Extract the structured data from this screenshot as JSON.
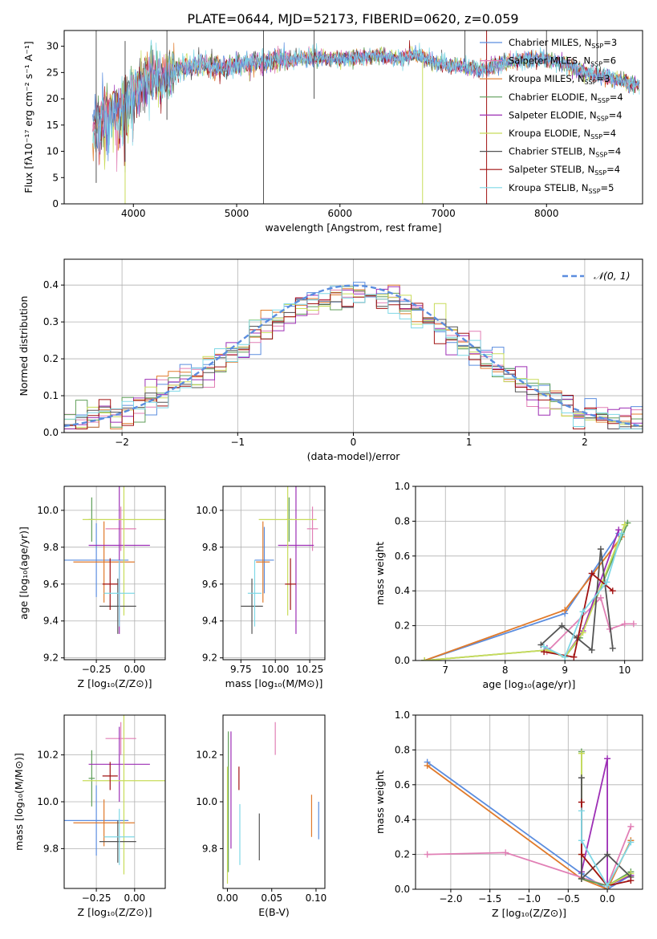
{
  "figure": {
    "title": "PLATE=0644, MJD=52173, FIBERID=0620, z=0.059"
  },
  "colors": {
    "Chabrier MILES": "#5b8ddf",
    "Salpeter MILES": "#e17fb5",
    "Kroupa MILES": "#e07a2b",
    "Chabrier ELODIE": "#5f9e58",
    "Salpeter ELODIE": "#9d2fb5",
    "Kroupa ELODIE": "#c8dc5a",
    "Chabrier STELIB": "#545454",
    "Salpeter STELIB": "#a11212",
    "Kroupa STELIB": "#7fd8e6"
  },
  "chart_data": [
    {
      "id": "spectrum",
      "type": "line",
      "title": "PLATE=0644, MJD=52173, FIBERID=0620, z=0.059",
      "xlabel": "wavelength [Angstrom, rest frame]",
      "ylabel": "Flux [fλ10⁻¹⁷ erg cm⁻² s⁻¹ A⁻¹]",
      "xlim": [
        3330,
        8930
      ],
      "ylim": [
        0,
        33
      ],
      "xticks": [
        4000,
        5000,
        6000,
        7000,
        8000
      ],
      "yticks": [
        0,
        5,
        10,
        15,
        20,
        25,
        30
      ],
      "grid": false,
      "legend_position": "right",
      "continuum": {
        "x": [
          3600,
          3650,
          3700,
          3800,
          3900,
          3950,
          4000,
          4100,
          4200,
          4300,
          4400,
          4500,
          4700,
          4860,
          5000,
          5200,
          5400,
          5600,
          5800,
          6000,
          6200,
          6400,
          6563,
          6700,
          6900,
          7000,
          7200,
          7400,
          7600,
          7800,
          8000,
          8200,
          8400,
          8600,
          8800,
          8900
        ],
        "y": [
          14,
          16,
          17,
          19,
          18.5,
          19.5,
          21,
          23.5,
          24.5,
          23.5,
          25.5,
          26,
          26.5,
          25.5,
          26.5,
          27,
          27.5,
          27.5,
          28,
          27.5,
          28,
          28.2,
          27.5,
          28.5,
          27,
          26.5,
          26,
          25.5,
          27,
          27.5,
          27.5,
          26.5,
          25,
          24,
          23,
          22.5
        ]
      },
      "legend": [
        {
          "label": "Chabrier MILES, N",
          "sub": "SSP",
          "suffix": "=3",
          "color": "#5b8ddf"
        },
        {
          "label": "Salpeter MILES, N",
          "sub": "SSP",
          "suffix": "=6",
          "color": "#e17fb5"
        },
        {
          "label": "Kroupa MILES, N",
          "sub": "SSP",
          "suffix": "=3",
          "color": "#e07a2b"
        },
        {
          "label": "Chabrier ELODIE, N",
          "sub": "SSP",
          "suffix": "=4",
          "color": "#5f9e58"
        },
        {
          "label": "Salpeter ELODIE, N",
          "sub": "SSP",
          "suffix": "=4",
          "color": "#9d2fb5"
        },
        {
          "label": "Kroupa ELODIE, N",
          "sub": "SSP",
          "suffix": "=4",
          "color": "#c8dc5a"
        },
        {
          "label": "Chabrier STELIB, N",
          "sub": "SSP",
          "suffix": "=4",
          "color": "#545454"
        },
        {
          "label": "Salpeter STELIB, N",
          "sub": "SSP",
          "suffix": "=4",
          "color": "#a11212"
        },
        {
          "label": "Kroupa STELIB, N",
          "sub": "SSP",
          "suffix": "=5",
          "color": "#7fd8e6"
        }
      ]
    },
    {
      "id": "residuals",
      "type": "line",
      "xlabel": "(data-model)/error",
      "ylabel": "Normed distribution",
      "xlim": [
        -2.5,
        2.5
      ],
      "ylim": [
        0,
        0.47
      ],
      "xticks": [
        -2,
        -1,
        0,
        1,
        2
      ],
      "yticks": [
        0.0,
        0.1,
        0.2,
        0.3,
        0.4
      ],
      "grid": true,
      "bin_width": 0.1,
      "reference": {
        "label": "𝒩(0, 1)",
        "color": "#5b8ddf",
        "style": "dashed"
      },
      "legend_position": "top-right"
    },
    {
      "id": "age-Z",
      "type": "scatter",
      "xlabel": "Z [log₁₀(Z/Z⊙)]",
      "ylabel": "age  [log₁₀(age/yr)]",
      "xlim": [
        -0.46,
        0.2
      ],
      "ylim": [
        9.19,
        10.13
      ],
      "xticks": [
        -0.25,
        0.0
      ],
      "yticks": [
        9.2,
        9.4,
        9.6,
        9.8,
        10.0
      ],
      "grid": true,
      "points": [
        {
          "name": "Chabrier MILES",
          "x": -0.25,
          "y": 9.73,
          "xerr": 0.21,
          "yerr": 0.2
        },
        {
          "name": "Salpeter MILES",
          "x": -0.09,
          "y": 9.9,
          "xerr": 0.1,
          "yerr": 0.12
        },
        {
          "name": "Kroupa MILES",
          "x": -0.2,
          "y": 9.72,
          "xerr": 0.2,
          "yerr": 0.22
        },
        {
          "name": "Chabrier ELODIE",
          "x": -0.28,
          "y": 9.95,
          "xerr": 0.02,
          "yerr": 0.12
        },
        {
          "name": "Salpeter ELODIE",
          "x": -0.1,
          "y": 9.81,
          "xerr": 0.2,
          "yerr": 0.48
        },
        {
          "name": "Kroupa ELODIE",
          "x": -0.07,
          "y": 9.95,
          "xerr": 0.27,
          "yerr": 0.52
        },
        {
          "name": "Chabrier STELIB",
          "x": -0.11,
          "y": 9.48,
          "xerr": 0.12,
          "yerr": 0.15
        },
        {
          "name": "Salpeter STELIB",
          "x": -0.16,
          "y": 9.6,
          "xerr": 0.05,
          "yerr": 0.14
        },
        {
          "name": "Kroupa STELIB",
          "x": -0.1,
          "y": 9.55,
          "xerr": 0.1,
          "yerr": 0.18
        }
      ]
    },
    {
      "id": "age-mass",
      "type": "scatter",
      "xlabel": "mass [log₁₀(M/M⊙)]",
      "ylabel": "",
      "xlim": [
        9.62,
        10.36
      ],
      "ylim": [
        9.19,
        10.13
      ],
      "xticks": [
        9.75,
        10.0,
        10.25
      ],
      "yticks": [
        9.2,
        9.4,
        9.6,
        9.8,
        10.0
      ],
      "grid": true,
      "points": [
        {
          "name": "Chabrier MILES",
          "x": 9.92,
          "y": 9.73,
          "xerr": 0.07,
          "yerr": 0.18
        },
        {
          "name": "Salpeter MILES",
          "x": 10.27,
          "y": 9.9,
          "xerr": 0.04,
          "yerr": 0.12
        },
        {
          "name": "Kroupa MILES",
          "x": 9.91,
          "y": 9.72,
          "xerr": 0.05,
          "yerr": 0.22
        },
        {
          "name": "Chabrier ELODIE",
          "x": 10.1,
          "y": 9.95,
          "xerr": 0.02,
          "yerr": 0.12
        },
        {
          "name": "Salpeter ELODIE",
          "x": 10.15,
          "y": 9.81,
          "xerr": 0.13,
          "yerr": 0.48
        },
        {
          "name": "Kroupa ELODIE",
          "x": 10.09,
          "y": 9.95,
          "xerr": 0.21,
          "yerr": 0.52
        },
        {
          "name": "Chabrier STELIB",
          "x": 9.83,
          "y": 9.48,
          "xerr": 0.08,
          "yerr": 0.15
        },
        {
          "name": "Salpeter STELIB",
          "x": 10.11,
          "y": 9.6,
          "xerr": 0.04,
          "yerr": 0.14
        },
        {
          "name": "Kroupa STELIB",
          "x": 9.85,
          "y": 9.55,
          "xerr": 0.05,
          "yerr": 0.18
        }
      ]
    },
    {
      "id": "weight-age",
      "type": "line",
      "xlabel": "age  [log₁₀(age/yr)]",
      "ylabel": "mass weight",
      "xlim": [
        6.5,
        10.3
      ],
      "ylim": [
        0,
        1.0
      ],
      "xticks": [
        7,
        8,
        9,
        10
      ],
      "yticks": [
        0.0,
        0.2,
        0.4,
        0.6,
        0.8,
        1.0
      ],
      "grid": true,
      "series": [
        {
          "name": "Chabrier MILES",
          "x": [
            6.65,
            9.0,
            9.9
          ],
          "y": [
            0.0,
            0.27,
            0.73
          ]
        },
        {
          "name": "Kroupa MILES",
          "x": [
            6.65,
            9.0,
            9.95
          ],
          "y": [
            0.0,
            0.29,
            0.71
          ]
        },
        {
          "name": "Salpeter MILES",
          "x": [
            8.7,
            9.6,
            9.75,
            10.0,
            10.15
          ],
          "y": [
            0.05,
            0.36,
            0.18,
            0.21,
            0.21
          ]
        },
        {
          "name": "Chabrier ELODIE",
          "x": [
            6.65,
            8.7,
            9.0,
            9.25,
            10.05
          ],
          "y": [
            0.0,
            0.06,
            0.02,
            0.13,
            0.79
          ]
        },
        {
          "name": "Salpeter ELODIE",
          "x": [
            8.7,
            9.0,
            9.3,
            9.9
          ],
          "y": [
            0.07,
            0.02,
            0.17,
            0.75
          ]
        },
        {
          "name": "Kroupa ELODIE",
          "x": [
            6.65,
            8.7,
            9.0,
            9.3,
            10.0
          ],
          "y": [
            0.0,
            0.06,
            0.02,
            0.16,
            0.78
          ]
        },
        {
          "name": "Chabrier STELIB",
          "x": [
            8.6,
            8.95,
            9.2,
            9.45,
            9.6,
            9.8
          ],
          "y": [
            0.09,
            0.2,
            0.13,
            0.06,
            0.64,
            0.07
          ]
        },
        {
          "name": "Salpeter STELIB",
          "x": [
            8.65,
            9.15,
            9.45,
            9.8
          ],
          "y": [
            0.05,
            0.02,
            0.5,
            0.4
          ]
        },
        {
          "name": "Kroupa STELIB",
          "x": [
            8.65,
            9.0,
            9.3,
            9.7,
            9.95
          ],
          "y": [
            0.08,
            0.02,
            0.28,
            0.45,
            0.73
          ]
        }
      ]
    },
    {
      "id": "mass-Z",
      "type": "scatter",
      "xlabel": "Z [log₁₀(Z/Z⊙)]",
      "ylabel": "mass [log₁₀(M/M⊙)]",
      "xlim": [
        -0.46,
        0.2
      ],
      "ylim": [
        9.63,
        10.37
      ],
      "xticks": [
        -0.25,
        0.0
      ],
      "yticks": [
        9.8,
        10.0,
        10.2
      ],
      "grid": true,
      "points": [
        {
          "name": "Chabrier MILES",
          "x": -0.25,
          "y": 9.92,
          "xerr": 0.21,
          "yerr": 0.15
        },
        {
          "name": "Salpeter MILES",
          "x": -0.09,
          "y": 10.27,
          "xerr": 0.1,
          "yerr": 0.07
        },
        {
          "name": "Kroupa MILES",
          "x": -0.2,
          "y": 9.91,
          "xerr": 0.2,
          "yerr": 0.1
        },
        {
          "name": "Chabrier ELODIE",
          "x": -0.28,
          "y": 10.1,
          "xerr": 0.02,
          "yerr": 0.12
        },
        {
          "name": "Salpeter ELODIE",
          "x": -0.1,
          "y": 10.16,
          "xerr": 0.2,
          "yerr": 0.16
        },
        {
          "name": "Kroupa ELODIE",
          "x": -0.07,
          "y": 10.09,
          "xerr": 0.27,
          "yerr": 0.4
        },
        {
          "name": "Chabrier STELIB",
          "x": -0.11,
          "y": 9.83,
          "xerr": 0.12,
          "yerr": 0.09
        },
        {
          "name": "Salpeter STELIB",
          "x": -0.16,
          "y": 10.11,
          "xerr": 0.05,
          "yerr": 0.06
        },
        {
          "name": "Kroupa STELIB",
          "x": -0.1,
          "y": 9.85,
          "xerr": 0.1,
          "yerr": 0.12
        }
      ]
    },
    {
      "id": "mass-ebv",
      "type": "scatter",
      "xlabel": "E(B-V)",
      "ylabel": "",
      "xlim": [
        -0.005,
        0.11
      ],
      "ylim": [
        9.63,
        10.37
      ],
      "xticks": [
        0.0,
        0.05,
        0.1
      ],
      "yticks": [
        9.8,
        10.0,
        10.2
      ],
      "grid": false,
      "points": [
        {
          "name": "Chabrier MILES",
          "x": 0.103,
          "y": 9.92,
          "yerr": 0.08
        },
        {
          "name": "Salpeter MILES",
          "x": 0.054,
          "y": 10.27,
          "yerr": 0.07
        },
        {
          "name": "Kroupa MILES",
          "x": 0.095,
          "y": 9.94,
          "yerr": 0.09
        },
        {
          "name": "Chabrier ELODIE",
          "x": 0.001,
          "y": 10.0,
          "yerr": 0.3
        },
        {
          "name": "Salpeter ELODIE",
          "x": 0.004,
          "y": 10.05,
          "yerr": 0.25
        },
        {
          "name": "Kroupa ELODIE",
          "x": 0.0,
          "y": 9.9,
          "yerr": 0.25
        },
        {
          "name": "Chabrier STELIB",
          "x": 0.036,
          "y": 9.85,
          "yerr": 0.1
        },
        {
          "name": "Salpeter STELIB",
          "x": 0.013,
          "y": 10.1,
          "yerr": 0.05
        },
        {
          "name": "Kroupa STELIB",
          "x": 0.014,
          "y": 9.86,
          "yerr": 0.13
        }
      ]
    },
    {
      "id": "weight-Z",
      "type": "line",
      "xlabel": "Z [log₁₀(Z/Z⊙)]",
      "ylabel": "mass weight",
      "xlim": [
        -2.45,
        0.45
      ],
      "ylim": [
        0,
        1.0
      ],
      "xticks": [
        -2.0,
        -1.5,
        -1.0,
        -0.5,
        0.0
      ],
      "yticks": [
        0.0,
        0.2,
        0.4,
        0.6,
        0.8,
        1.0
      ],
      "grid": true,
      "series": [
        {
          "name": "Chabrier MILES",
          "x": [
            -2.3,
            -0.33,
            0.0,
            0.3
          ],
          "y": [
            0.73,
            0.09,
            0.0,
            0.08
          ]
        },
        {
          "name": "Kroupa MILES",
          "x": [
            -2.3,
            -0.33,
            0.0,
            0.3
          ],
          "y": [
            0.71,
            0.06,
            0.0,
            0.28
          ]
        },
        {
          "name": "Salpeter MILES",
          "x": [
            -2.3,
            -1.3,
            0.0,
            0.3
          ],
          "y": [
            0.2,
            0.21,
            0.02,
            0.36
          ]
        },
        {
          "name": "Chabrier ELODIE",
          "x": [
            -0.33,
            -0.33,
            0.0,
            0.3
          ],
          "y": [
            0.79,
            0.06,
            0.02,
            0.1
          ]
        },
        {
          "name": "Salpeter ELODIE",
          "x": [
            -0.33,
            0.0,
            0.0,
            0.3
          ],
          "y": [
            0.1,
            0.75,
            0.02,
            0.08
          ]
        },
        {
          "name": "Kroupa ELODIE",
          "x": [
            -0.33,
            -0.33,
            0.0,
            0.3
          ],
          "y": [
            0.78,
            0.2,
            0.02,
            0.09
          ]
        },
        {
          "name": "Chabrier STELIB",
          "x": [
            -0.33,
            -0.33,
            0.0,
            0.3
          ],
          "y": [
            0.64,
            0.06,
            0.2,
            0.07
          ]
        },
        {
          "name": "Salpeter STELIB",
          "x": [
            -0.33,
            -0.33,
            0.0,
            0.3
          ],
          "y": [
            0.5,
            0.2,
            0.02,
            0.05
          ]
        },
        {
          "name": "Kroupa STELIB",
          "x": [
            -0.33,
            -0.33,
            0.0,
            0.3
          ],
          "y": [
            0.45,
            0.28,
            0.02,
            0.27
          ]
        }
      ]
    }
  ]
}
